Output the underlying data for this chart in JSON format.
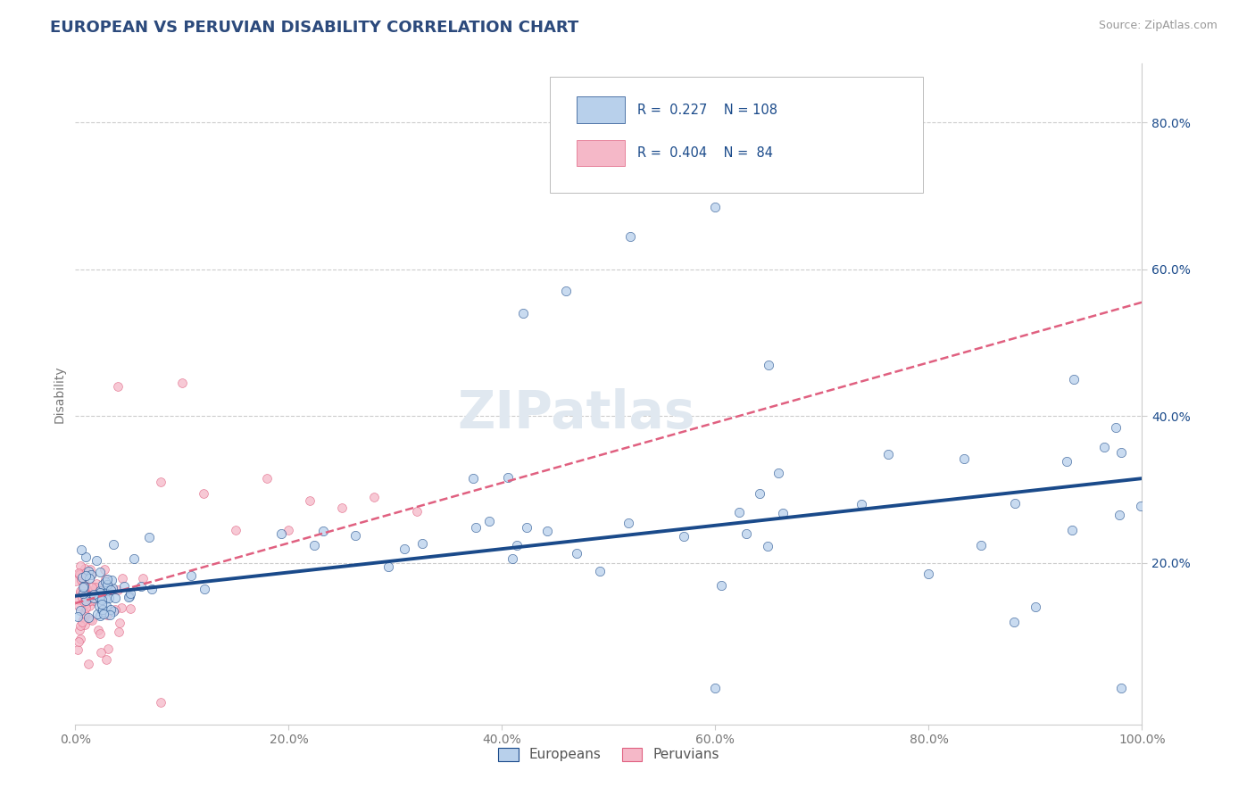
{
  "title": "EUROPEAN VS PERUVIAN DISABILITY CORRELATION CHART",
  "source": "Source: ZipAtlas.com",
  "ylabel": "Disability",
  "xlim": [
    0,
    1.0
  ],
  "ylim": [
    -0.02,
    0.88
  ],
  "xticks": [
    0.0,
    0.2,
    0.4,
    0.6,
    0.8,
    1.0
  ],
  "xtick_labels": [
    "0.0%",
    "20.0%",
    "40.0%",
    "60.0%",
    "80.0%",
    "100.0%"
  ],
  "ytick_labels": [
    "20.0%",
    "40.0%",
    "60.0%",
    "80.0%"
  ],
  "ytick_positions": [
    0.2,
    0.4,
    0.6,
    0.8
  ],
  "euro_R": "0.227",
  "euro_N": "108",
  "peru_R": "0.404",
  "peru_N": "84",
  "euro_color": "#b8d0eb",
  "peru_color": "#f5b8c8",
  "euro_line_color": "#1a4a8a",
  "peru_line_color": "#e06080",
  "background_color": "#ffffff",
  "grid_color": "#cccccc",
  "title_color": "#2c4a7c",
  "watermark": "ZIPatlas",
  "legend_euro_label": "Europeans",
  "legend_peru_label": "Peruvians",
  "euro_trend_start_y": 0.155,
  "euro_trend_end_y": 0.315,
  "peru_trend_start_y": 0.145,
  "peru_trend_end_y": 0.555
}
